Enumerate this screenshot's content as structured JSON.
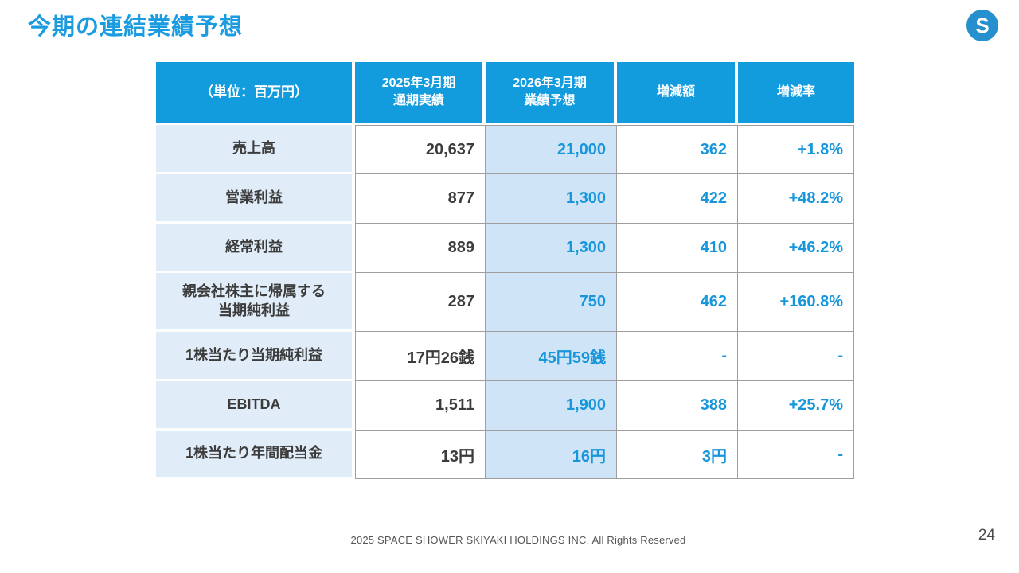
{
  "title": "今期の連結業績予想",
  "logo": {
    "letter": "S"
  },
  "table": {
    "headers": {
      "unit": "（単位：百万円）",
      "actual": "2025年3月期\n通期実績",
      "forecast": "2026年3月期\n業績予想",
      "diff": "増減額",
      "rate": "増減率"
    },
    "rows": [
      {
        "label": "売上高",
        "actual": "20,637",
        "forecast": "21,000",
        "diff": "362",
        "rate": "+1.8%"
      },
      {
        "label": "営業利益",
        "actual": "877",
        "forecast": "1,300",
        "diff": "422",
        "rate": "+48.2%"
      },
      {
        "label": "経常利益",
        "actual": "889",
        "forecast": "1,300",
        "diff": "410",
        "rate": "+46.2%"
      },
      {
        "label": "親会社株主に帰属する\n当期純利益",
        "actual": "287",
        "forecast": "750",
        "diff": "462",
        "rate": "+160.8%"
      },
      {
        "label": "1株当たり当期純利益",
        "actual": "17円26銭",
        "forecast": "45円59銭",
        "diff": "-",
        "rate": "-"
      },
      {
        "label": "EBITDA",
        "actual": "1,511",
        "forecast": "1,900",
        "diff": "388",
        "rate": "+25.7%"
      },
      {
        "label": "1株当たり年間配当金",
        "actual": "13円",
        "forecast": "16円",
        "diff": "3円",
        "rate": "-"
      }
    ]
  },
  "footer": {
    "copyright": "2025 SPACE SHOWER SKIYAKI HOLDINGS INC. All Rights Reserved",
    "page_number": "24"
  },
  "colors": {
    "accent_blue": "#129CDE",
    "title_blue": "#1B9CE0",
    "forecast_bg": "#CFE5F7",
    "label_bg": "#E0EDF8",
    "value_blue": "#1796DB",
    "dark_text": "#3C3C3C",
    "border_gray": "#9E9E9E"
  }
}
